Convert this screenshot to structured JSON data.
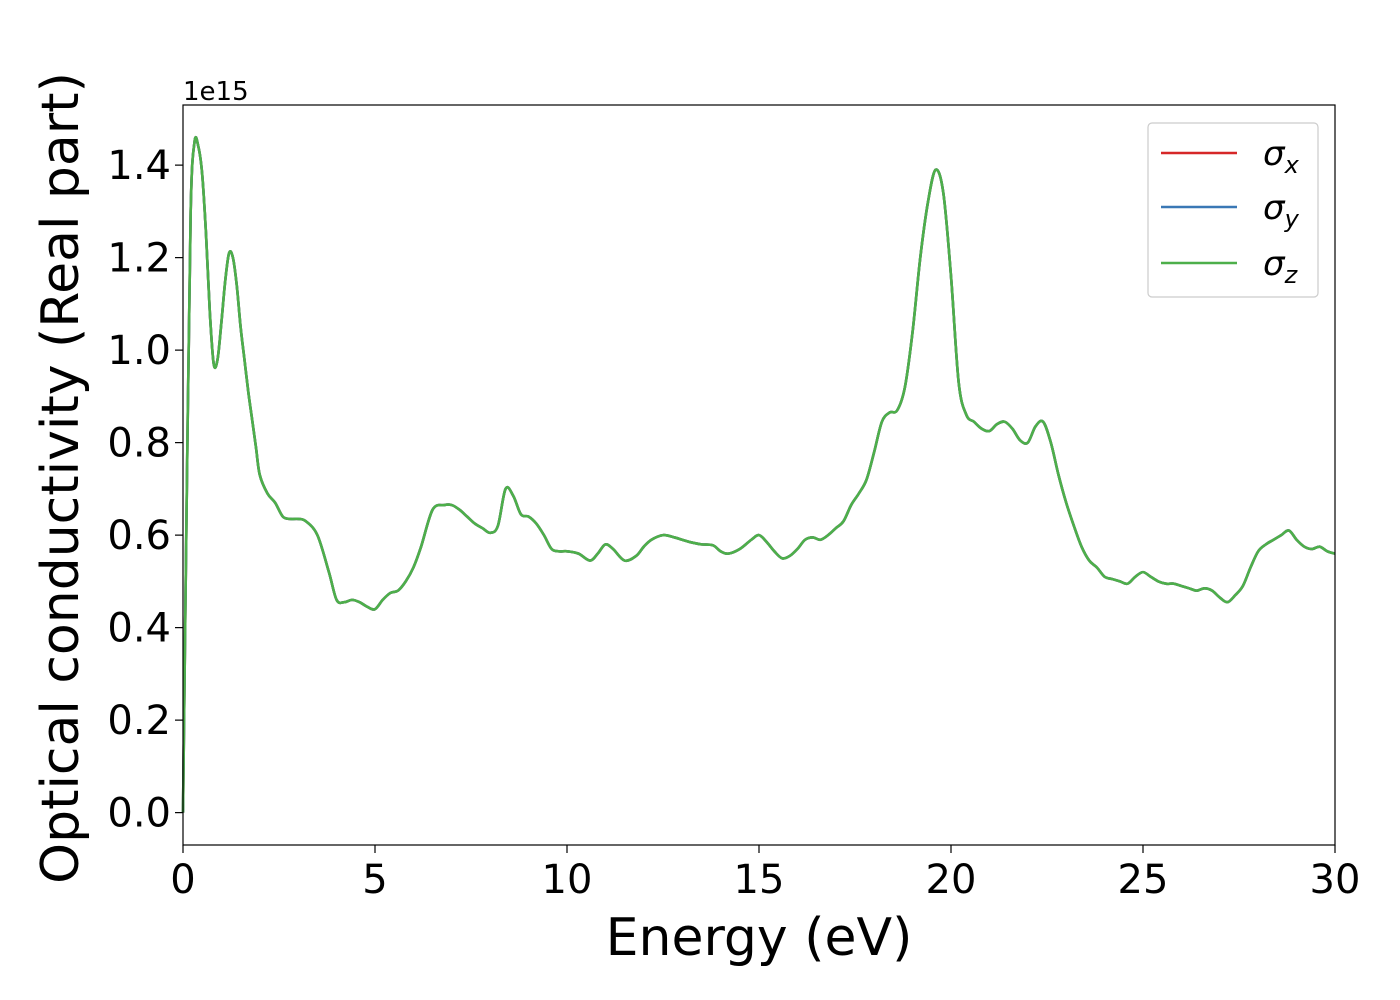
{
  "chart_data": {
    "type": "line",
    "xlabel": "Energy (eV)",
    "ylabel": "Optical conductivity (Real part)",
    "y_offset_label": "1e15",
    "xlim": [
      0,
      30
    ],
    "ylim": [
      -0.07,
      1.53
    ],
    "x_ticks": [
      0,
      5,
      10,
      15,
      20,
      25,
      30
    ],
    "x_tick_labels": [
      "0",
      "5",
      "10",
      "15",
      "20",
      "25",
      "30"
    ],
    "y_ticks": [
      0.0,
      0.2,
      0.4,
      0.6,
      0.8,
      1.0,
      1.2,
      1.4
    ],
    "y_tick_labels": [
      "0.0",
      "0.2",
      "0.4",
      "0.6",
      "0.8",
      "1.0",
      "1.2",
      "1.4"
    ],
    "grid": false,
    "legend_position": "top-right",
    "series": [
      {
        "name": "σ",
        "subscript": "x",
        "color": "#d62728"
      },
      {
        "name": "σ",
        "subscript": "y",
        "color": "#3a78b5"
      },
      {
        "name": "σ",
        "subscript": "z",
        "color": "#4daf4a"
      }
    ],
    "x": [
      0,
      0.1,
      0.2,
      0.3,
      0.4,
      0.5,
      0.6,
      0.7,
      0.8,
      0.9,
      1.0,
      1.1,
      1.2,
      1.3,
      1.4,
      1.5,
      1.6,
      1.7,
      1.8,
      1.9,
      2.0,
      2.2,
      2.4,
      2.6,
      2.8,
      3.0,
      3.2,
      3.5,
      3.8,
      4.0,
      4.2,
      4.4,
      4.6,
      4.8,
      5.0,
      5.2,
      5.4,
      5.6,
      5.8,
      6.0,
      6.2,
      6.5,
      6.8,
      7.0,
      7.2,
      7.4,
      7.6,
      7.8,
      8.0,
      8.2,
      8.4,
      8.6,
      8.8,
      9.0,
      9.2,
      9.4,
      9.6,
      9.8,
      10.0,
      10.3,
      10.6,
      10.8,
      11.0,
      11.2,
      11.5,
      11.8,
      12.0,
      12.2,
      12.5,
      12.8,
      13.0,
      13.2,
      13.5,
      13.8,
      14.0,
      14.2,
      14.5,
      14.8,
      15.0,
      15.2,
      15.4,
      15.6,
      15.8,
      16.0,
      16.2,
      16.4,
      16.6,
      16.8,
      17.0,
      17.2,
      17.4,
      17.6,
      17.8,
      18.0,
      18.2,
      18.4,
      18.6,
      18.8,
      19.0,
      19.2,
      19.4,
      19.6,
      19.8,
      20.0,
      20.2,
      20.4,
      20.6,
      20.8,
      21.0,
      21.2,
      21.4,
      21.6,
      21.8,
      22.0,
      22.2,
      22.4,
      22.6,
      22.8,
      23.0,
      23.2,
      23.4,
      23.6,
      23.8,
      24.0,
      24.2,
      24.4,
      24.6,
      24.8,
      25.0,
      25.2,
      25.4,
      25.6,
      25.8,
      26.0,
      26.2,
      26.4,
      26.6,
      26.8,
      27.0,
      27.2,
      27.4,
      27.6,
      27.8,
      28.0,
      28.2,
      28.4,
      28.6,
      28.8,
      29.0,
      29.2,
      29.4,
      29.6,
      29.8,
      30.0
    ],
    "y": [
      0.0,
      0.7,
      1.3,
      1.45,
      1.44,
      1.38,
      1.25,
      1.08,
      0.97,
      0.98,
      1.06,
      1.15,
      1.21,
      1.2,
      1.14,
      1.05,
      0.98,
      0.91,
      0.85,
      0.79,
      0.73,
      0.69,
      0.67,
      0.64,
      0.635,
      0.635,
      0.63,
      0.6,
      0.52,
      0.46,
      0.455,
      0.46,
      0.455,
      0.445,
      0.44,
      0.46,
      0.475,
      0.48,
      0.5,
      0.53,
      0.575,
      0.655,
      0.665,
      0.665,
      0.655,
      0.64,
      0.625,
      0.615,
      0.605,
      0.62,
      0.7,
      0.685,
      0.645,
      0.64,
      0.625,
      0.6,
      0.57,
      0.565,
      0.565,
      0.56,
      0.545,
      0.56,
      0.58,
      0.57,
      0.545,
      0.555,
      0.575,
      0.59,
      0.6,
      0.595,
      0.59,
      0.585,
      0.58,
      0.578,
      0.565,
      0.56,
      0.57,
      0.59,
      0.6,
      0.585,
      0.565,
      0.55,
      0.555,
      0.57,
      0.59,
      0.595,
      0.59,
      0.6,
      0.615,
      0.63,
      0.665,
      0.69,
      0.72,
      0.78,
      0.845,
      0.865,
      0.87,
      0.92,
      1.04,
      1.2,
      1.32,
      1.39,
      1.34,
      1.16,
      0.93,
      0.86,
      0.845,
      0.83,
      0.825,
      0.84,
      0.845,
      0.83,
      0.805,
      0.8,
      0.835,
      0.845,
      0.8,
      0.73,
      0.67,
      0.62,
      0.575,
      0.545,
      0.53,
      0.51,
      0.505,
      0.5,
      0.495,
      0.51,
      0.52,
      0.51,
      0.5,
      0.495,
      0.495,
      0.49,
      0.485,
      0.48,
      0.485,
      0.48,
      0.465,
      0.455,
      0.47,
      0.49,
      0.53,
      0.565,
      0.58,
      0.59,
      0.6,
      0.61,
      0.59,
      0.575,
      0.57,
      0.575,
      0.565,
      0.56
    ]
  }
}
